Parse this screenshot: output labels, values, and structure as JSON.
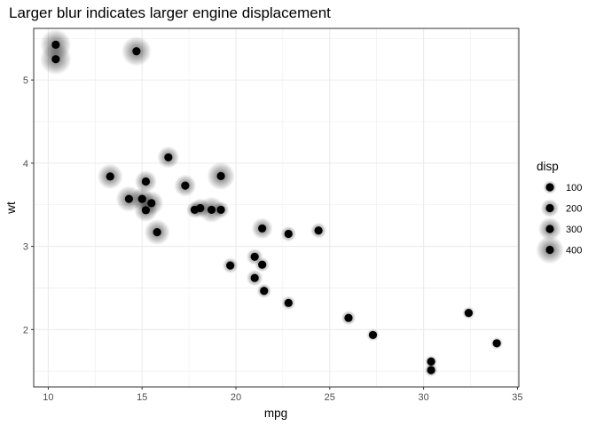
{
  "chart_data": {
    "type": "scatter",
    "title": "Larger blur indicates larger engine displacement",
    "xlabel": "mpg",
    "ylabel": "wt",
    "xlim": [
      9.225,
      35.075
    ],
    "ylim": [
      1.31,
      5.62
    ],
    "x_ticks": [
      10,
      15,
      20,
      25,
      30,
      35
    ],
    "y_ticks": [
      2,
      3,
      4,
      5
    ],
    "grid": true,
    "legend": {
      "title": "disp",
      "position": "right",
      "entries": [
        100,
        200,
        300,
        400
      ]
    },
    "points": [
      {
        "x": 21.0,
        "y": 2.62,
        "disp": 160.0
      },
      {
        "x": 21.0,
        "y": 2.875,
        "disp": 160.0
      },
      {
        "x": 22.8,
        "y": 2.32,
        "disp": 108.0
      },
      {
        "x": 21.4,
        "y": 3.215,
        "disp": 258.0
      },
      {
        "x": 18.7,
        "y": 3.44,
        "disp": 360.0
      },
      {
        "x": 18.1,
        "y": 3.46,
        "disp": 225.0
      },
      {
        "x": 14.3,
        "y": 3.57,
        "disp": 360.0
      },
      {
        "x": 24.4,
        "y": 3.19,
        "disp": 146.7
      },
      {
        "x": 22.8,
        "y": 3.15,
        "disp": 140.8
      },
      {
        "x": 19.2,
        "y": 3.44,
        "disp": 167.6
      },
      {
        "x": 17.8,
        "y": 3.44,
        "disp": 167.6
      },
      {
        "x": 16.4,
        "y": 4.07,
        "disp": 275.8
      },
      {
        "x": 17.3,
        "y": 3.73,
        "disp": 275.8
      },
      {
        "x": 15.2,
        "y": 3.78,
        "disp": 275.8
      },
      {
        "x": 10.4,
        "y": 5.25,
        "disp": 472.0
      },
      {
        "x": 10.4,
        "y": 5.424,
        "disp": 460.0
      },
      {
        "x": 14.7,
        "y": 5.345,
        "disp": 440.0
      },
      {
        "x": 32.4,
        "y": 2.2,
        "disp": 78.7
      },
      {
        "x": 30.4,
        "y": 1.615,
        "disp": 75.7
      },
      {
        "x": 33.9,
        "y": 1.835,
        "disp": 71.1
      },
      {
        "x": 21.5,
        "y": 2.465,
        "disp": 120.1
      },
      {
        "x": 15.5,
        "y": 3.52,
        "disp": 318.0
      },
      {
        "x": 15.2,
        "y": 3.435,
        "disp": 304.0
      },
      {
        "x": 13.3,
        "y": 3.84,
        "disp": 350.0
      },
      {
        "x": 19.2,
        "y": 3.845,
        "disp": 400.0
      },
      {
        "x": 27.3,
        "y": 1.935,
        "disp": 79.0
      },
      {
        "x": 26.0,
        "y": 2.14,
        "disp": 120.3
      },
      {
        "x": 30.4,
        "y": 1.513,
        "disp": 95.1
      },
      {
        "x": 15.8,
        "y": 3.17,
        "disp": 351.0
      },
      {
        "x": 19.7,
        "y": 2.77,
        "disp": 145.0
      },
      {
        "x": 15.0,
        "y": 3.57,
        "disp": 301.0
      },
      {
        "x": 21.4,
        "y": 2.78,
        "disp": 121.0
      }
    ]
  }
}
